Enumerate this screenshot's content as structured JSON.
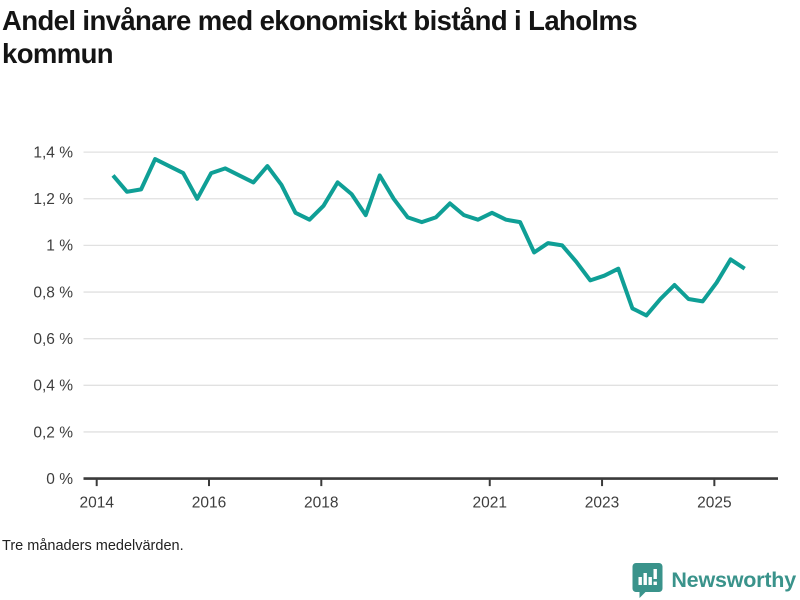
{
  "header": {
    "title": "Andel invånare med ekonomiskt bistånd i Laholms kommun"
  },
  "chart_data": {
    "type": "line",
    "title": "Andel invånare med ekonomiskt bistånd i Laholms kommun",
    "xlabel": "",
    "ylabel": "",
    "unit": "%",
    "decimal_separator": ",",
    "grid": true,
    "legend_position": "none",
    "ylim": [
      0,
      1.4
    ],
    "xlim": [
      2013.76,
      2025.9
    ],
    "x_ticks": [
      {
        "label": "2014",
        "year": 2014
      },
      {
        "label": "2016",
        "year": 2016
      },
      {
        "label": "2018",
        "year": 2018
      },
      {
        "label": "2021",
        "year": 2021
      },
      {
        "label": "2023",
        "year": 2023
      },
      {
        "label": "2025",
        "year": 2025
      }
    ],
    "y_ticks": [
      {
        "label": "0 %",
        "value": 0
      },
      {
        "label": "0,2 %",
        "value": 0.2
      },
      {
        "label": "0,4 %",
        "value": 0.4
      },
      {
        "label": "0,6 %",
        "value": 0.6
      },
      {
        "label": "0,8 %",
        "value": 0.8
      },
      {
        "label": "1 %",
        "value": 1
      },
      {
        "label": "1,2 %",
        "value": 1.2
      },
      {
        "label": "1,4 %",
        "value": 1.4
      }
    ],
    "series": [
      {
        "name": "Andel invånare med ekonomiskt bistånd, tre månaders medelvärden",
        "x": [
          2014.29,
          2014.54,
          2014.79,
          2015.04,
          2015.29,
          2015.54,
          2015.79,
          2016.04,
          2016.29,
          2016.54,
          2016.79,
          2017.04,
          2017.29,
          2017.54,
          2017.79,
          2018.04,
          2018.29,
          2018.54,
          2018.79,
          2019.04,
          2019.29,
          2019.54,
          2019.79,
          2020.04,
          2020.29,
          2020.54,
          2020.79,
          2021.04,
          2021.29,
          2021.54,
          2021.79,
          2022.04,
          2022.29,
          2022.54,
          2022.79,
          2023.04,
          2023.29,
          2023.54,
          2023.79,
          2024.04,
          2024.29,
          2024.54,
          2024.79,
          2025.04,
          2025.29,
          2025.54
        ],
        "values": [
          1.3,
          1.23,
          1.24,
          1.37,
          1.34,
          1.31,
          1.2,
          1.31,
          1.33,
          1.3,
          1.27,
          1.34,
          1.26,
          1.14,
          1.11,
          1.17,
          1.27,
          1.22,
          1.13,
          1.3,
          1.2,
          1.12,
          1.1,
          1.12,
          1.18,
          1.13,
          1.11,
          1.14,
          1.11,
          1.1,
          0.97,
          1.01,
          1.0,
          0.93,
          0.85,
          0.87,
          0.9,
          0.73,
          0.7,
          0.77,
          0.83,
          0.77,
          0.76,
          0.84,
          0.94,
          0.9
        ]
      }
    ],
    "colors": {
      "line": "#0f9f96",
      "grid": "#e1e1e1",
      "axis": "#3a3a3a",
      "tick_text": "#3d3d3d"
    }
  },
  "footer": {
    "note": "Tre månaders medelvärden."
  },
  "branding": {
    "name": "Newsworthy",
    "color": "#3a938b",
    "icon": "newsworthy-chart-bubble-icon"
  }
}
